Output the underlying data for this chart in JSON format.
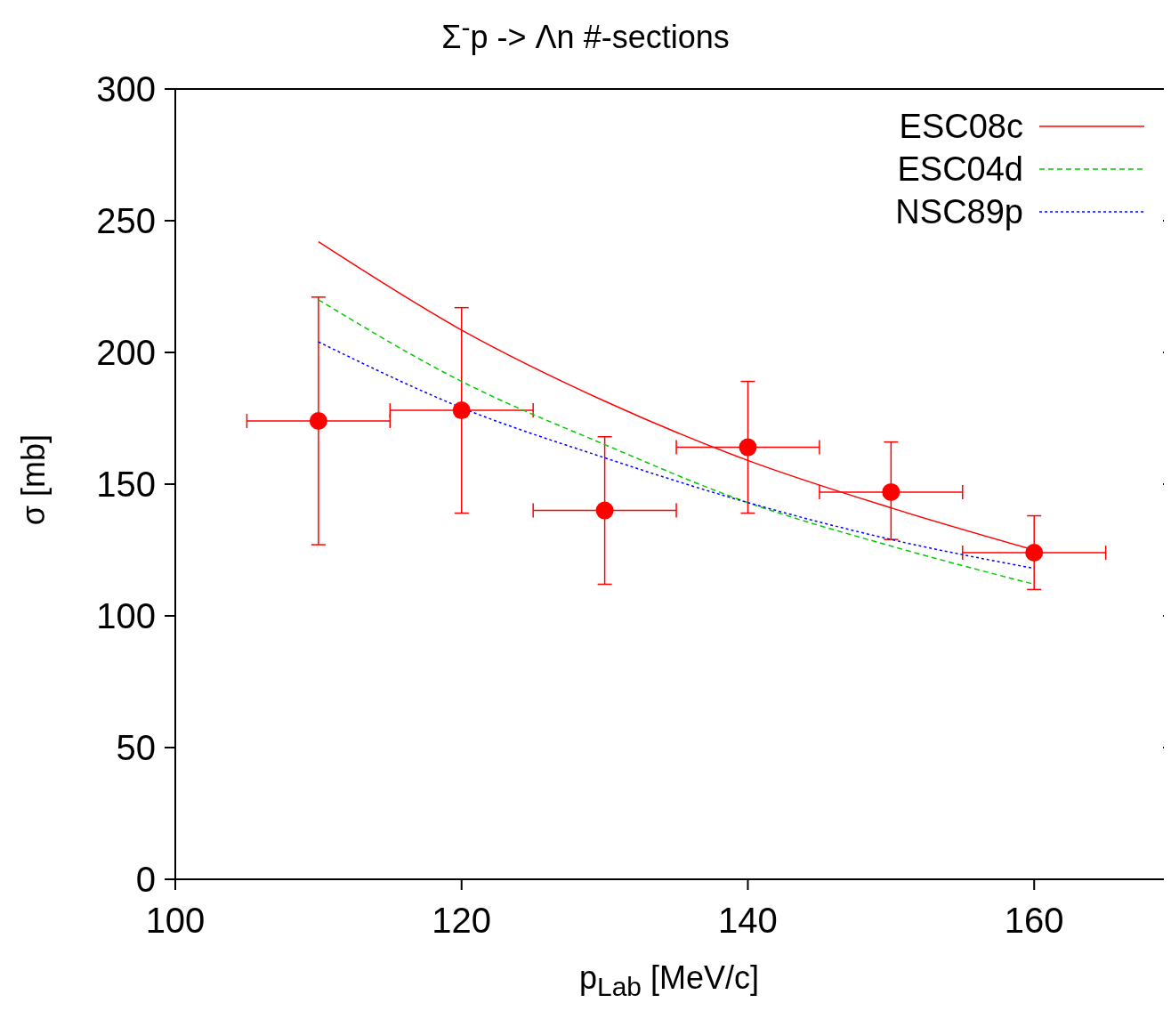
{
  "chart_data": {
    "type": "line",
    "title": "Σ$^{-}$p -> Λn #-sections",
    "xlabel": "p$_{Lab}$ [MeV/c]",
    "ylabel": "σ [mb]",
    "xlim": [
      100,
      169
    ],
    "xticks": [
      100,
      120,
      140,
      160
    ],
    "ylim": [
      0,
      300
    ],
    "yticks": [
      0,
      50,
      100,
      150,
      200,
      250,
      300
    ],
    "grid": false,
    "legend": "top right",
    "series": [
      {
        "name": "ESC08c",
        "type": "line",
        "color": "#ff0000",
        "line_style": "solid",
        "marker": "none",
        "x": [
          110,
          120,
          130,
          140,
          150,
          160
        ],
        "values": [
          242,
          208.5,
          181.5,
          159,
          141,
          125
        ]
      },
      {
        "name": "ESC04d",
        "type": "line",
        "color": "#00cc00",
        "line_style": "dashed",
        "marker": "none",
        "x": [
          110,
          120,
          130,
          140,
          150,
          160
        ],
        "values": [
          220,
          189,
          165,
          143,
          126.5,
          112
        ]
      },
      {
        "name": "NSC89p",
        "type": "line",
        "color": "#0000ff",
        "line_style": "dotted",
        "marker": "none",
        "x": [
          110,
          120,
          130,
          140,
          150,
          160
        ],
        "values": [
          204,
          179,
          160,
          143,
          129,
          118
        ]
      },
      {
        "type": "scatter",
        "color": "#ff0000",
        "marker": "circle",
        "x": [
          110,
          120,
          130,
          140,
          150,
          160
        ],
        "values": [
          174,
          178,
          140,
          164,
          147,
          124
        ],
        "errors": [
          [
            127,
            221
          ],
          [
            139,
            217
          ],
          [
            112,
            168
          ],
          [
            139,
            189
          ],
          [
            129,
            166
          ],
          [
            110,
            138
          ]
        ],
        "xerrors": [
          [
            105,
            115
          ],
          [
            115,
            125
          ],
          [
            125,
            135
          ],
          [
            135,
            145
          ],
          [
            145,
            155
          ],
          [
            155,
            165
          ]
        ]
      }
    ]
  }
}
